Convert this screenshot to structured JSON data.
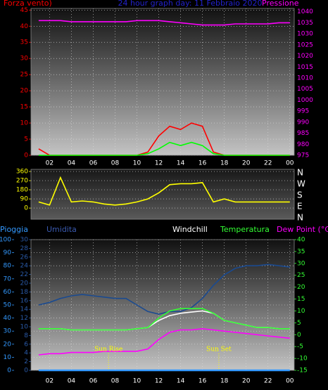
{
  "chart_data": [
    {
      "type": "line",
      "title": "24 hour graph day: 11 Febbraio 2020",
      "y_label": "Forza vento)",
      "y2_label": "Pressione",
      "x": [
        1,
        2,
        3,
        4,
        5,
        6,
        7,
        8,
        9,
        10,
        11,
        12,
        13,
        14,
        15,
        16,
        17,
        18,
        19,
        20,
        21,
        22,
        23,
        24
      ],
      "series": [
        {
          "color": "#ff0000",
          "values": [
            2,
            0,
            0,
            0,
            0,
            0,
            0,
            0,
            0,
            0,
            1,
            6,
            9,
            8,
            10,
            9,
            1,
            0,
            0,
            0,
            0,
            0,
            0,
            0
          ]
        },
        {
          "color": "#00ff00",
          "values": [
            0,
            0,
            0,
            0,
            0,
            0,
            0,
            0,
            0,
            0,
            0.5,
            2,
            4,
            3,
            4,
            3,
            0.5,
            0,
            0,
            0,
            0,
            0,
            0,
            0
          ]
        },
        {
          "color": "#ff00ff",
          "axis": "y2",
          "values": [
            1036,
            1036,
            1036,
            1035.5,
            1035.5,
            1035.5,
            1035.5,
            1035.5,
            1035.5,
            1036,
            1036,
            1036,
            1035.5,
            1035,
            1034.5,
            1034,
            1034,
            1034,
            1034.5,
            1034.5,
            1034.5,
            1034.5,
            1035,
            1035
          ]
        }
      ],
      "xlim": [
        0.3,
        24.4
      ],
      "xticks": [
        {
          "value": 2,
          "label": "02"
        },
        {
          "value": 4,
          "label": "04"
        },
        {
          "value": 6,
          "label": "06"
        },
        {
          "value": 8,
          "label": "08"
        },
        10,
        12,
        14,
        16,
        18,
        20,
        22,
        {
          "value": 24,
          "label": "00"
        }
      ],
      "ylim": [
        0,
        45.5
      ],
      "yticks": [
        0,
        5,
        10,
        15,
        20,
        25,
        30,
        35,
        40,
        45
      ],
      "y2lim": [
        975,
        1041.5
      ],
      "y2ticks": [
        975,
        980,
        985,
        990,
        995,
        1000,
        1005,
        1010,
        1015,
        1020,
        1025,
        1030,
        1035,
        1040
      ],
      "grid": true
    },
    {
      "type": "line",
      "x": [
        1,
        2,
        3,
        4,
        5,
        6,
        7,
        8,
        9,
        10,
        11,
        12,
        13,
        14,
        15,
        16,
        17,
        18,
        19,
        20,
        21,
        22,
        23,
        24
      ],
      "series": [
        {
          "color": "#ffff00",
          "values": [
            60,
            30,
            300,
            60,
            70,
            60,
            40,
            30,
            40,
            60,
            90,
            150,
            230,
            240,
            240,
            250,
            60,
            90,
            60,
            60,
            60,
            60,
            60,
            60
          ]
        }
      ],
      "xlim": [
        0.3,
        24.4
      ],
      "ylim": [
        -110,
        381
      ],
      "yticks": [
        0,
        90,
        180,
        270,
        360
      ],
      "y2lim": [
        -11,
        387
      ],
      "y2ticks": [
        {
          "value": 360,
          "label": "N"
        },
        {
          "value": 270,
          "label": "W"
        },
        {
          "value": 180,
          "label": "S"
        },
        {
          "value": 90,
          "label": "E"
        },
        {
          "value": 0,
          "label": "N"
        }
      ],
      "grid": true
    },
    {
      "type": "line",
      "x": [
        1,
        2,
        3,
        4,
        5,
        6,
        7,
        8,
        9,
        10,
        11,
        12,
        13,
        14,
        15,
        16,
        17,
        18,
        19,
        20,
        21,
        22,
        23,
        24
      ],
      "series": [
        {
          "name": "Pioggia",
          "color": "#3399ff",
          "axis": "y3",
          "values": [
            0,
            0,
            0,
            0,
            0,
            0,
            0,
            0,
            0,
            0,
            0,
            0,
            0,
            0,
            0,
            0,
            0,
            0,
            0,
            0,
            0,
            0,
            0,
            0
          ]
        },
        {
          "name": "Umidita",
          "color": "#1a4a90",
          "values": [
            50,
            52,
            55,
            57,
            58,
            57,
            56,
            55,
            55,
            50,
            45,
            43,
            45,
            45,
            48,
            55,
            65,
            73,
            78,
            80,
            80,
            81,
            80,
            79
          ]
        },
        {
          "name": "Windchill",
          "color": "#ffffff",
          "axis": "y2",
          "values": [
            2.5,
            2.5,
            2.5,
            2,
            2,
            2,
            2,
            2,
            2,
            2.5,
            3,
            6,
            8,
            9,
            9.5,
            10,
            9,
            6,
            5,
            4,
            3,
            3,
            2.5,
            2.5
          ]
        },
        {
          "name": "Temperatura",
          "color": "#33ff33",
          "axis": "y2",
          "values": [
            2.5,
            2.5,
            2.5,
            2,
            2,
            2,
            2,
            2,
            2,
            2.5,
            3,
            7,
            10,
            11,
            11,
            11,
            9,
            6,
            5,
            4,
            3,
            3,
            2.5,
            2.5
          ]
        },
        {
          "name": "Dew Point (°C)",
          "color": "#ff00ff",
          "axis": "y2",
          "values": [
            -8.5,
            -8,
            -8,
            -7.5,
            -7.5,
            -7.5,
            -7,
            -7,
            -7,
            -7,
            -6,
            -2,
            1,
            2,
            2,
            2.5,
            2,
            1.5,
            1,
            0.5,
            0,
            -0.5,
            -1,
            -1.5
          ]
        }
      ],
      "annotations": [
        {
          "text": "Sun Rise",
          "x": 7.4
        },
        {
          "text": "Sun Set",
          "x": 17.5
        }
      ],
      "xlim": [
        0.3,
        24.4
      ],
      "xticks": [
        {
          "value": 2,
          "label": "02"
        },
        {
          "value": 4,
          "label": "04"
        },
        {
          "value": 6,
          "label": "06"
        },
        {
          "value": 8,
          "label": "08"
        },
        10,
        12,
        14,
        16,
        18,
        20,
        22,
        {
          "value": 24,
          "label": "00"
        }
      ],
      "ylim": [
        0,
        100
      ],
      "yticks": [
        0,
        10,
        20,
        30,
        40,
        50,
        60,
        70,
        80,
        90,
        100
      ],
      "y3lim": [
        0,
        30
      ],
      "y3ticks": [
        0,
        2,
        4,
        6,
        8,
        10,
        12,
        14,
        16,
        18,
        20,
        22,
        24,
        26,
        28,
        30
      ],
      "y2lim": [
        -15,
        40
      ],
      "y2ticks": [
        -15,
        -10,
        -5,
        0,
        5,
        10,
        15,
        20,
        25,
        30,
        35,
        40
      ],
      "grid": true
    }
  ]
}
